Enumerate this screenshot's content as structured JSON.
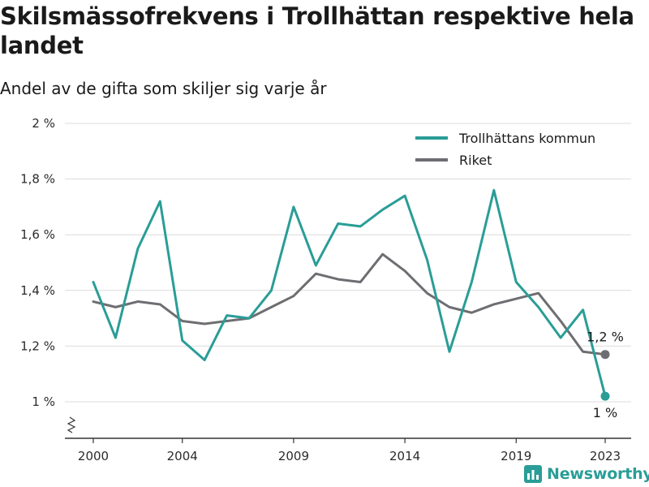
{
  "header": {
    "title": "Skilsmässofrekvens i Trollhättan respektive hela landet",
    "subtitle": "Andel av de gifta som skiljer sig varje år"
  },
  "brand": {
    "name": "Newsworthy",
    "color": "#2a9d97"
  },
  "chart_data": {
    "type": "line",
    "title": "Skilsmässofrekvens i Trollhättan respektive hela landet",
    "subtitle": "Andel av de gifta som skiljer sig varje år",
    "xlabel": "",
    "ylabel": "",
    "x": [
      2000,
      2001,
      2002,
      2003,
      2004,
      2005,
      2006,
      2007,
      2008,
      2009,
      2010,
      2011,
      2012,
      2013,
      2014,
      2015,
      2016,
      2017,
      2018,
      2019,
      2020,
      2021,
      2022,
      2023
    ],
    "x_ticks": [
      2000,
      2004,
      2009,
      2014,
      2019,
      2023
    ],
    "x_tick_labels": [
      "2000",
      "2004",
      "2009",
      "2014",
      "2019",
      "2023"
    ],
    "y_ticks": [
      1.0,
      1.2,
      1.4,
      1.6,
      1.8,
      2.0
    ],
    "y_tick_labels": [
      "1 %",
      "1,2 %",
      "1,4 %",
      "1,6 %",
      "1,8 %",
      "2 %"
    ],
    "ylim": [
      1.0,
      2.0
    ],
    "y_axis_broken": true,
    "grid": true,
    "legend_position": "top-right",
    "series": [
      {
        "name": "Trollhättans kommun",
        "color": "#2a9d97",
        "values": [
          1.43,
          1.23,
          1.55,
          1.72,
          1.22,
          1.15,
          1.31,
          1.3,
          1.4,
          1.7,
          1.49,
          1.64,
          1.63,
          1.69,
          1.74,
          1.51,
          1.18,
          1.43,
          1.76,
          1.43,
          1.34,
          1.23,
          1.33,
          1.02
        ],
        "end_label": "1 %"
      },
      {
        "name": "Riket",
        "color": "#6e6e72",
        "values": [
          1.36,
          1.34,
          1.36,
          1.35,
          1.29,
          1.28,
          1.29,
          1.3,
          1.34,
          1.38,
          1.46,
          1.44,
          1.43,
          1.53,
          1.47,
          1.39,
          1.34,
          1.32,
          1.35,
          1.37,
          1.39,
          1.29,
          1.18,
          1.17
        ],
        "end_label": "1,2 %"
      }
    ]
  }
}
